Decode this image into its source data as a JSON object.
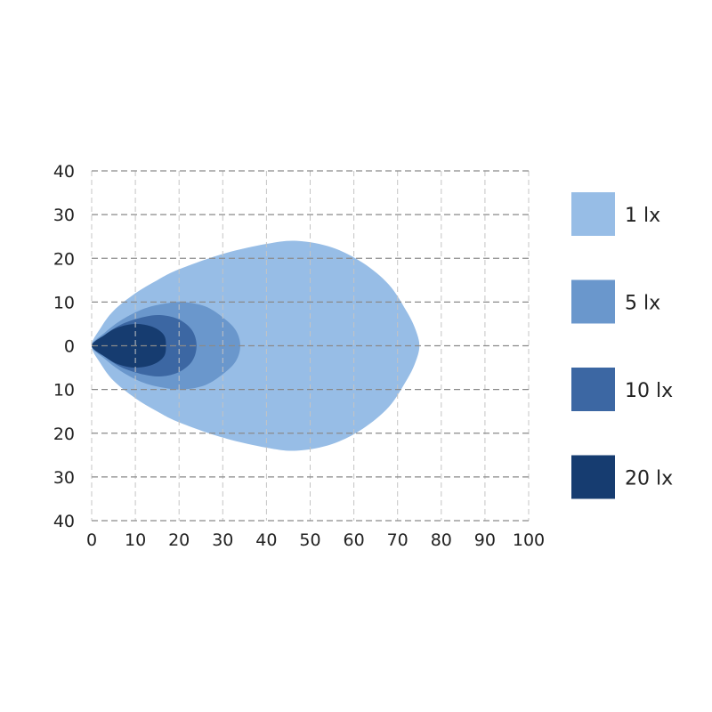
{
  "chart_data": {
    "type": "area",
    "title": "",
    "xlabel": "",
    "ylabel": "",
    "xlim": [
      0,
      100
    ],
    "ylim": [
      -40,
      40
    ],
    "x_ticks": [
      "0",
      "10",
      "20",
      "30",
      "40",
      "50",
      "60",
      "70",
      "80",
      "90",
      "100"
    ],
    "y_ticks": [
      "40",
      "30",
      "20",
      "10",
      "0",
      "10",
      "20",
      "30",
      "40"
    ],
    "grid": true,
    "legend_placement": "right",
    "series": [
      {
        "name": "1 lx",
        "color": "#97bde6",
        "outline_upper": [
          [
            0,
            0
          ],
          [
            2,
            4
          ],
          [
            5,
            8
          ],
          [
            10,
            12
          ],
          [
            15,
            15
          ],
          [
            20,
            17.5
          ],
          [
            30,
            21
          ],
          [
            40,
            23.3
          ],
          [
            47,
            24
          ],
          [
            55,
            22.5
          ],
          [
            62,
            19
          ],
          [
            68,
            14
          ],
          [
            72,
            8
          ],
          [
            74,
            4
          ],
          [
            75,
            0
          ]
        ]
      },
      {
        "name": "5 lx",
        "color": "#6a97cc",
        "outline_upper": [
          [
            0,
            0
          ],
          [
            3,
            3
          ],
          [
            7,
            6
          ],
          [
            12,
            8.5
          ],
          [
            17,
            9.7
          ],
          [
            21,
            10
          ],
          [
            26,
            9
          ],
          [
            30,
            6.5
          ],
          [
            33,
            3.5
          ],
          [
            34,
            0
          ]
        ]
      },
      {
        "name": "10 lx",
        "color": "#3c67a3",
        "outline_upper": [
          [
            0,
            0
          ],
          [
            3,
            2.5
          ],
          [
            7,
            5
          ],
          [
            12,
            6.6
          ],
          [
            16,
            7
          ],
          [
            20,
            6
          ],
          [
            23,
            3.5
          ],
          [
            24,
            0
          ]
        ]
      },
      {
        "name": "20 lx",
        "color": "#163c70",
        "outline_upper": [
          [
            0,
            0
          ],
          [
            3,
            2.5
          ],
          [
            6,
            4.2
          ],
          [
            10,
            5
          ],
          [
            14,
            4.3
          ],
          [
            16.5,
            2.5
          ],
          [
            17,
            0
          ]
        ]
      }
    ]
  }
}
